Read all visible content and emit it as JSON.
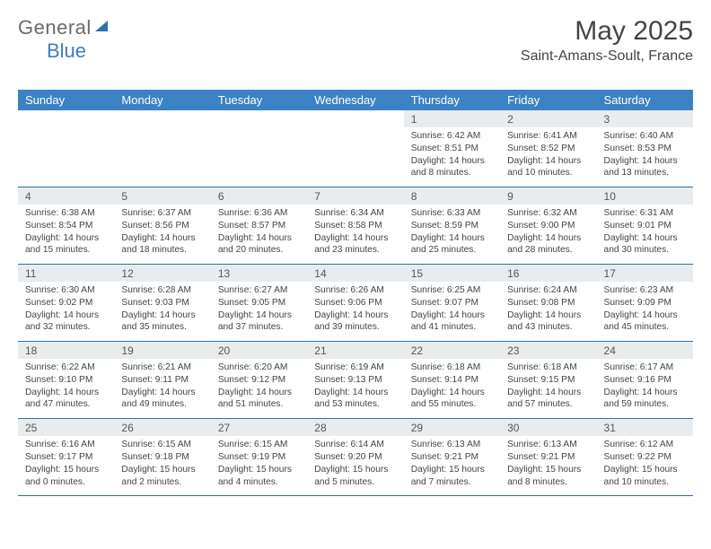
{
  "logo": {
    "part1": "General",
    "part2": "Blue"
  },
  "title": "May 2025",
  "location": "Saint-Amans-Soult, France",
  "colors": {
    "header_bg": "#3b82c4",
    "daynum_bg": "#e9ecee",
    "border": "#2f6fb0",
    "text": "#444444"
  },
  "day_names": [
    "Sunday",
    "Monday",
    "Tuesday",
    "Wednesday",
    "Thursday",
    "Friday",
    "Saturday"
  ],
  "weeks": [
    [
      {
        "num": "",
        "lines": []
      },
      {
        "num": "",
        "lines": []
      },
      {
        "num": "",
        "lines": []
      },
      {
        "num": "",
        "lines": []
      },
      {
        "num": "1",
        "lines": [
          "Sunrise: 6:42 AM",
          "Sunset: 8:51 PM",
          "Daylight: 14 hours",
          "and 8 minutes."
        ]
      },
      {
        "num": "2",
        "lines": [
          "Sunrise: 6:41 AM",
          "Sunset: 8:52 PM",
          "Daylight: 14 hours",
          "and 10 minutes."
        ]
      },
      {
        "num": "3",
        "lines": [
          "Sunrise: 6:40 AM",
          "Sunset: 8:53 PM",
          "Daylight: 14 hours",
          "and 13 minutes."
        ]
      }
    ],
    [
      {
        "num": "4",
        "lines": [
          "Sunrise: 6:38 AM",
          "Sunset: 8:54 PM",
          "Daylight: 14 hours",
          "and 15 minutes."
        ]
      },
      {
        "num": "5",
        "lines": [
          "Sunrise: 6:37 AM",
          "Sunset: 8:56 PM",
          "Daylight: 14 hours",
          "and 18 minutes."
        ]
      },
      {
        "num": "6",
        "lines": [
          "Sunrise: 6:36 AM",
          "Sunset: 8:57 PM",
          "Daylight: 14 hours",
          "and 20 minutes."
        ]
      },
      {
        "num": "7",
        "lines": [
          "Sunrise: 6:34 AM",
          "Sunset: 8:58 PM",
          "Daylight: 14 hours",
          "and 23 minutes."
        ]
      },
      {
        "num": "8",
        "lines": [
          "Sunrise: 6:33 AM",
          "Sunset: 8:59 PM",
          "Daylight: 14 hours",
          "and 25 minutes."
        ]
      },
      {
        "num": "9",
        "lines": [
          "Sunrise: 6:32 AM",
          "Sunset: 9:00 PM",
          "Daylight: 14 hours",
          "and 28 minutes."
        ]
      },
      {
        "num": "10",
        "lines": [
          "Sunrise: 6:31 AM",
          "Sunset: 9:01 PM",
          "Daylight: 14 hours",
          "and 30 minutes."
        ]
      }
    ],
    [
      {
        "num": "11",
        "lines": [
          "Sunrise: 6:30 AM",
          "Sunset: 9:02 PM",
          "Daylight: 14 hours",
          "and 32 minutes."
        ]
      },
      {
        "num": "12",
        "lines": [
          "Sunrise: 6:28 AM",
          "Sunset: 9:03 PM",
          "Daylight: 14 hours",
          "and 35 minutes."
        ]
      },
      {
        "num": "13",
        "lines": [
          "Sunrise: 6:27 AM",
          "Sunset: 9:05 PM",
          "Daylight: 14 hours",
          "and 37 minutes."
        ]
      },
      {
        "num": "14",
        "lines": [
          "Sunrise: 6:26 AM",
          "Sunset: 9:06 PM",
          "Daylight: 14 hours",
          "and 39 minutes."
        ]
      },
      {
        "num": "15",
        "lines": [
          "Sunrise: 6:25 AM",
          "Sunset: 9:07 PM",
          "Daylight: 14 hours",
          "and 41 minutes."
        ]
      },
      {
        "num": "16",
        "lines": [
          "Sunrise: 6:24 AM",
          "Sunset: 9:08 PM",
          "Daylight: 14 hours",
          "and 43 minutes."
        ]
      },
      {
        "num": "17",
        "lines": [
          "Sunrise: 6:23 AM",
          "Sunset: 9:09 PM",
          "Daylight: 14 hours",
          "and 45 minutes."
        ]
      }
    ],
    [
      {
        "num": "18",
        "lines": [
          "Sunrise: 6:22 AM",
          "Sunset: 9:10 PM",
          "Daylight: 14 hours",
          "and 47 minutes."
        ]
      },
      {
        "num": "19",
        "lines": [
          "Sunrise: 6:21 AM",
          "Sunset: 9:11 PM",
          "Daylight: 14 hours",
          "and 49 minutes."
        ]
      },
      {
        "num": "20",
        "lines": [
          "Sunrise: 6:20 AM",
          "Sunset: 9:12 PM",
          "Daylight: 14 hours",
          "and 51 minutes."
        ]
      },
      {
        "num": "21",
        "lines": [
          "Sunrise: 6:19 AM",
          "Sunset: 9:13 PM",
          "Daylight: 14 hours",
          "and 53 minutes."
        ]
      },
      {
        "num": "22",
        "lines": [
          "Sunrise: 6:18 AM",
          "Sunset: 9:14 PM",
          "Daylight: 14 hours",
          "and 55 minutes."
        ]
      },
      {
        "num": "23",
        "lines": [
          "Sunrise: 6:18 AM",
          "Sunset: 9:15 PM",
          "Daylight: 14 hours",
          "and 57 minutes."
        ]
      },
      {
        "num": "24",
        "lines": [
          "Sunrise: 6:17 AM",
          "Sunset: 9:16 PM",
          "Daylight: 14 hours",
          "and 59 minutes."
        ]
      }
    ],
    [
      {
        "num": "25",
        "lines": [
          "Sunrise: 6:16 AM",
          "Sunset: 9:17 PM",
          "Daylight: 15 hours",
          "and 0 minutes."
        ]
      },
      {
        "num": "26",
        "lines": [
          "Sunrise: 6:15 AM",
          "Sunset: 9:18 PM",
          "Daylight: 15 hours",
          "and 2 minutes."
        ]
      },
      {
        "num": "27",
        "lines": [
          "Sunrise: 6:15 AM",
          "Sunset: 9:19 PM",
          "Daylight: 15 hours",
          "and 4 minutes."
        ]
      },
      {
        "num": "28",
        "lines": [
          "Sunrise: 6:14 AM",
          "Sunset: 9:20 PM",
          "Daylight: 15 hours",
          "and 5 minutes."
        ]
      },
      {
        "num": "29",
        "lines": [
          "Sunrise: 6:13 AM",
          "Sunset: 9:21 PM",
          "Daylight: 15 hours",
          "and 7 minutes."
        ]
      },
      {
        "num": "30",
        "lines": [
          "Sunrise: 6:13 AM",
          "Sunset: 9:21 PM",
          "Daylight: 15 hours",
          "and 8 minutes."
        ]
      },
      {
        "num": "31",
        "lines": [
          "Sunrise: 6:12 AM",
          "Sunset: 9:22 PM",
          "Daylight: 15 hours",
          "and 10 minutes."
        ]
      }
    ]
  ]
}
